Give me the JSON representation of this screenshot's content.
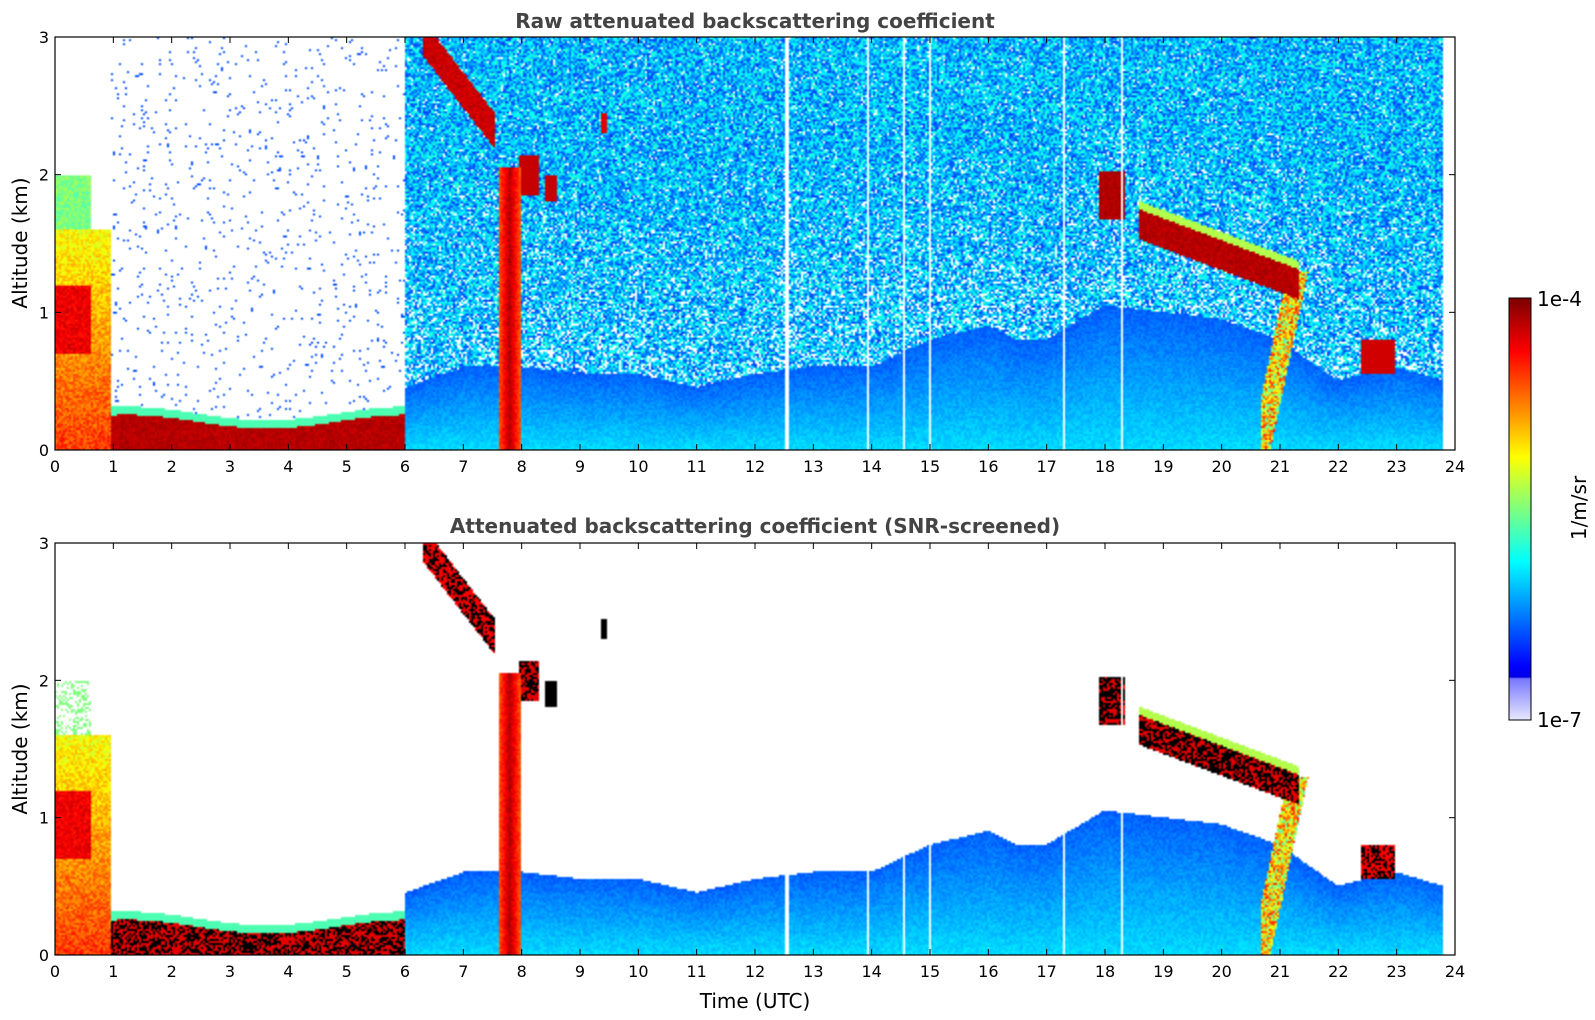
{
  "chart_data": [
    {
      "type": "heatmap",
      "title": "Raw attenuated backscattering coefficient",
      "xlabel": "",
      "ylabel": "Altitude (km)",
      "xlim": [
        0,
        24
      ],
      "ylim": [
        0,
        3
      ],
      "xticks": [
        "0",
        "1",
        "2",
        "3",
        "4",
        "5",
        "6",
        "7",
        "8",
        "9",
        "10",
        "11",
        "12",
        "13",
        "14",
        "15",
        "16",
        "17",
        "18",
        "19",
        "20",
        "21",
        "22",
        "23",
        "24"
      ],
      "yticks": [
        "0",
        "1",
        "2",
        "3"
      ],
      "mode": "raw",
      "features": [
        {
          "name": "boundary-layer-top",
          "x": [
            0.5,
            1.0,
            2.0,
            3.0,
            4.0,
            5.0,
            5.8
          ],
          "y": [
            0.15,
            0.15,
            0.1,
            0.1,
            0.1,
            0.12,
            0.2
          ]
        },
        {
          "name": "cloud-1800",
          "x": [
            17.9,
            18.4
          ],
          "y": [
            1.7,
            2.0
          ]
        },
        {
          "name": "cloud-layer-1900-2130",
          "x": [
            18.6,
            19.5,
            20.5,
            21.2
          ],
          "y": [
            1.7,
            1.45,
            1.35,
            1.25
          ]
        },
        {
          "name": "precip-0745",
          "x": [
            7.6,
            8.0
          ],
          "y": [
            0,
            2.0
          ]
        },
        {
          "name": "cloud-2250",
          "x": [
            22.4,
            23.0
          ],
          "y": [
            0.6,
            0.75
          ]
        }
      ]
    },
    {
      "type": "heatmap",
      "title": "Attenuated backscattering coefficient (SNR-screened)",
      "xlabel": "Time (UTC)",
      "ylabel": "Altitude (km)",
      "xlim": [
        0,
        24
      ],
      "ylim": [
        0,
        3
      ],
      "xticks": [
        "0",
        "1",
        "2",
        "3",
        "4",
        "5",
        "6",
        "7",
        "8",
        "9",
        "10",
        "11",
        "12",
        "13",
        "14",
        "15",
        "16",
        "17",
        "18",
        "19",
        "20",
        "21",
        "22",
        "23",
        "24"
      ],
      "yticks": [
        "0",
        "1",
        "2",
        "3"
      ],
      "mode": "screened",
      "mixing_layer_top_km": [
        [
          6.0,
          0.45
        ],
        [
          7.0,
          0.6
        ],
        [
          8.0,
          0.6
        ],
        [
          9.0,
          0.55
        ],
        [
          10.0,
          0.55
        ],
        [
          11.0,
          0.45
        ],
        [
          12.0,
          0.55
        ],
        [
          13.0,
          0.6
        ],
        [
          14.0,
          0.6
        ],
        [
          15.0,
          0.8
        ],
        [
          16.0,
          0.9
        ],
        [
          16.5,
          0.8
        ],
        [
          17.0,
          0.8
        ],
        [
          18.0,
          1.05
        ],
        [
          19.0,
          1.0
        ],
        [
          20.0,
          0.95
        ],
        [
          21.0,
          0.8
        ],
        [
          22.0,
          0.5
        ],
        [
          23.0,
          0.6
        ],
        [
          23.8,
          0.5
        ]
      ]
    }
  ],
  "colorbar": {
    "max_label": "1e-4",
    "min_label": "1e-7",
    "unit_label": "1/m/sr"
  }
}
